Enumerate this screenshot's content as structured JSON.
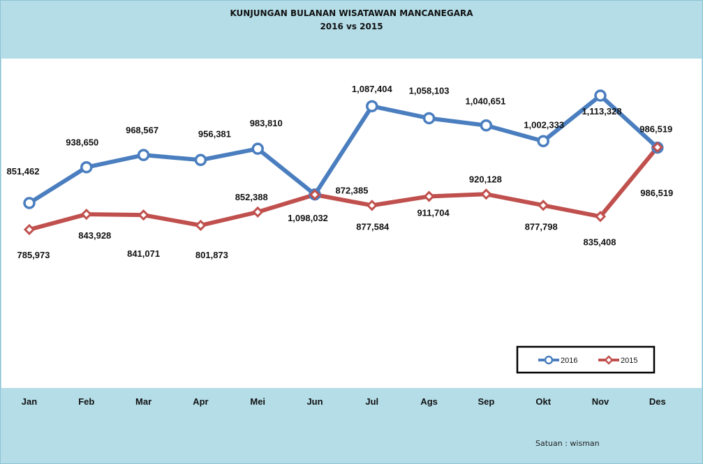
{
  "chart_data": {
    "type": "line",
    "title": "KUNJUNGAN BULANAN WISATAWAN MANCANEGARA",
    "subtitle": "2016  vs  2015",
    "categories": [
      "Jan",
      "Feb",
      "Mar",
      "Apr",
      "Mei",
      "Jun",
      "Jul",
      "Ags",
      "Sep",
      "Okt",
      "Nov",
      "Des"
    ],
    "series": [
      {
        "name": "2016",
        "color": "#4a7ebf",
        "marker": "circle",
        "values": [
          851462,
          938650,
          968567,
          956381,
          983810,
          872385,
          1087404,
          1058103,
          1040651,
          1002333,
          1113328,
          986519
        ],
        "labels": [
          "851,462",
          "938,650",
          "968,567",
          "956,381",
          "983,810",
          "872,385",
          "1,087,404",
          "1,058,103",
          "1,040,651",
          "1,002,333",
          "1,113,328",
          "986,519"
        ]
      },
      {
        "name": "2015",
        "color": "#c0504d",
        "marker": "diamond",
        "values": [
          785973,
          843928,
          841071,
          801873,
          852388,
          1098032,
          877584,
          911704,
          920128,
          877798,
          835408,
          986519
        ],
        "labels": [
          "785,973",
          "843,928",
          "841,071",
          "801,873",
          "852,388",
          "1,098,032",
          "877,584",
          "911,704",
          "920,128",
          "877,798",
          "835,408",
          "986,519"
        ]
      }
    ],
    "legend": "bottom-right",
    "grid": false
  },
  "footer": {
    "unit_note": "Satuan : wisman"
  }
}
